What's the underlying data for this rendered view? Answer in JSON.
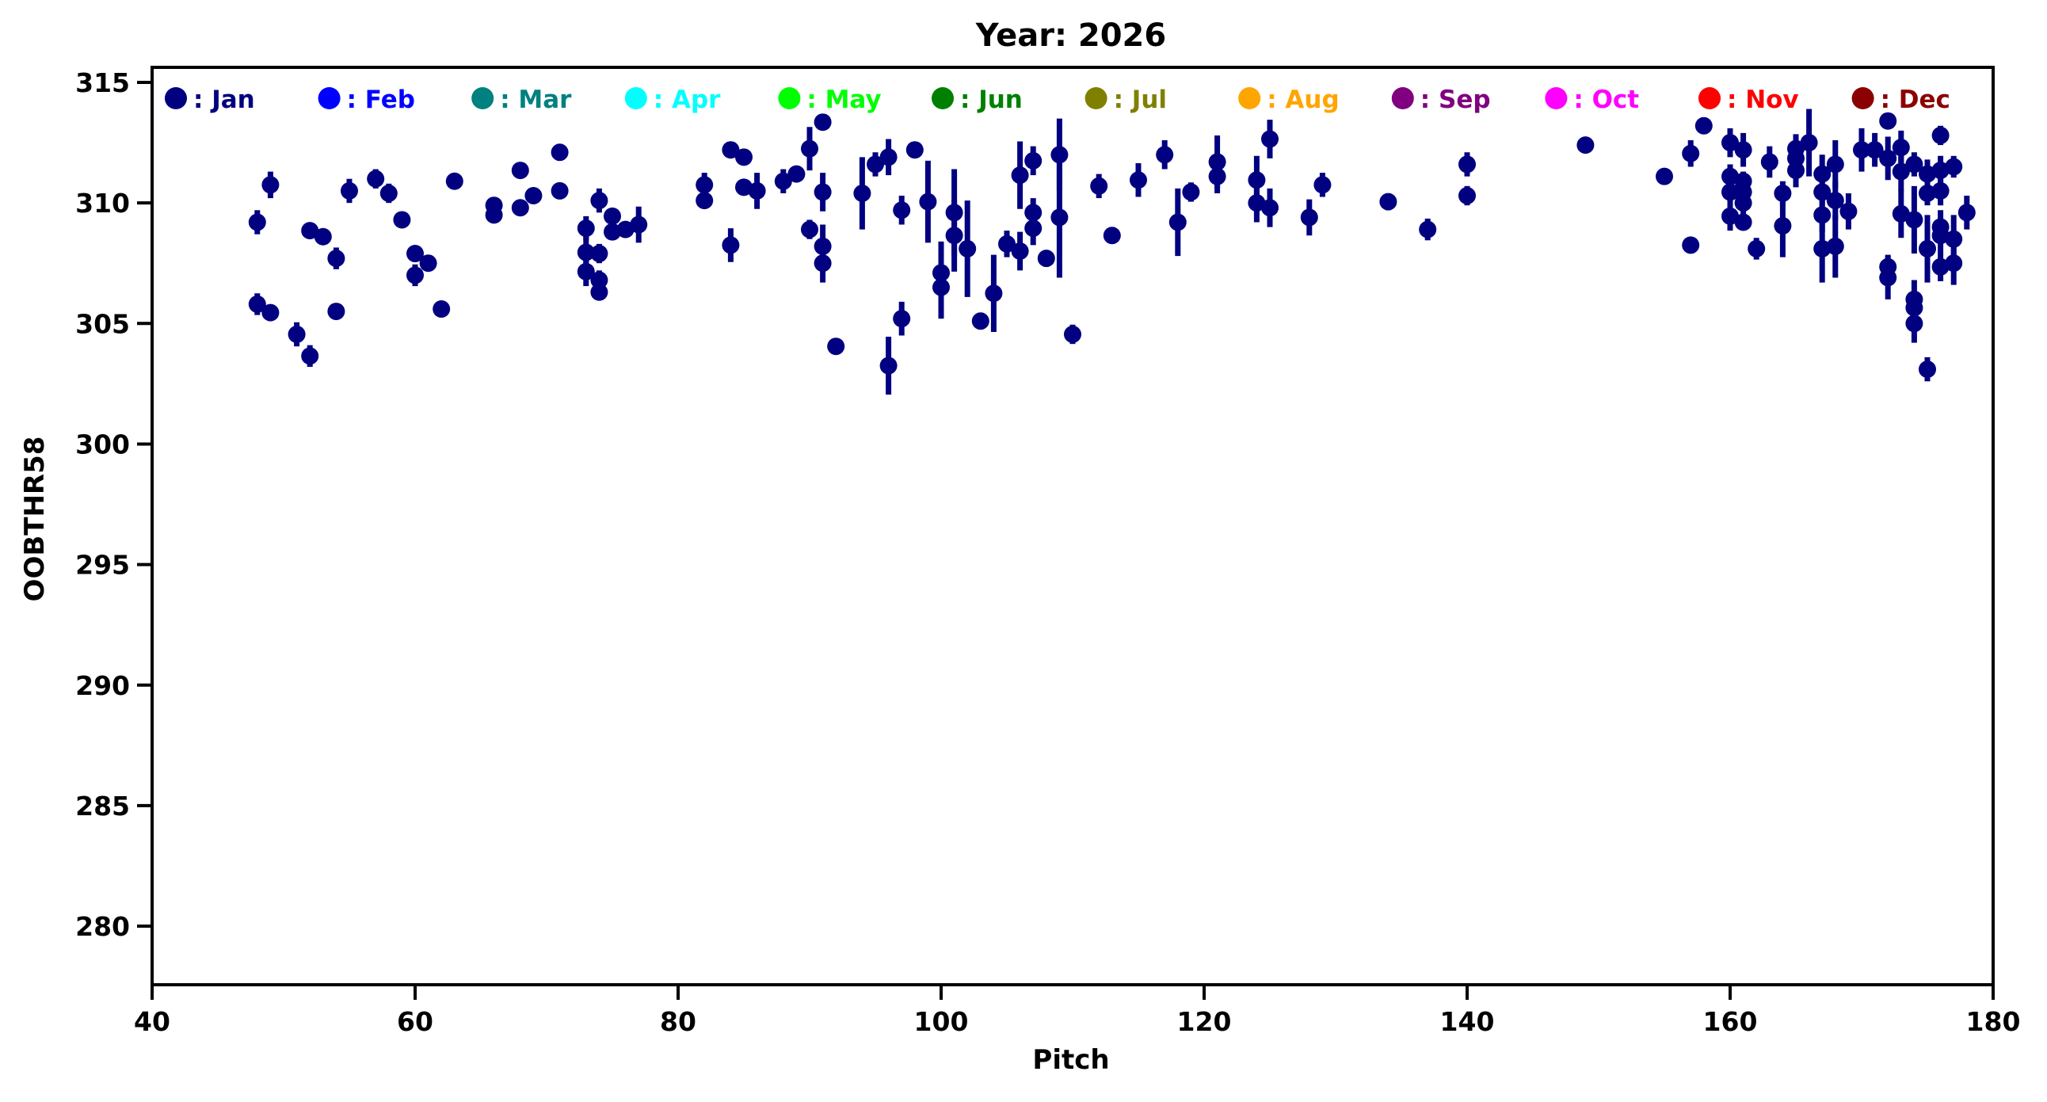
{
  "title": "Year: 2026",
  "axes": {
    "xlabel": "Pitch",
    "ylabel": "OOBTHR58"
  },
  "legend": {
    "months": [
      {
        "label": "Jan",
        "color": "#000080"
      },
      {
        "label": "Feb",
        "color": "#0000ff"
      },
      {
        "label": "Mar",
        "color": "#008080"
      },
      {
        "label": "Apr",
        "color": "#00ffff"
      },
      {
        "label": "May",
        "color": "#00ff00"
      },
      {
        "label": "Jun",
        "color": "#008000"
      },
      {
        "label": "Jul",
        "color": "#808000"
      },
      {
        "label": "Aug",
        "color": "#ffa500"
      },
      {
        "label": "Sep",
        "color": "#800080"
      },
      {
        "label": "Oct",
        "color": "#ff00ff"
      },
      {
        "label": "Nov",
        "color": "#ff0000"
      },
      {
        "label": "Dec",
        "color": "#8b0000"
      }
    ]
  },
  "chart_data": {
    "type": "scatter",
    "title": "Year: 2026",
    "xlabel": "Pitch",
    "ylabel": "OOBTHR58",
    "xlim": [
      40,
      180
    ],
    "ylim": [
      277.6,
      315.5
    ],
    "xticks": [
      40,
      60,
      80,
      100,
      120,
      140,
      160,
      180
    ],
    "yticks": [
      280,
      285,
      290,
      295,
      300,
      305,
      310,
      315
    ],
    "grid": false,
    "legend_position": "top-inside-row",
    "marker_color": "#000080",
    "series": [
      {
        "name": "Jan",
        "color": "#000080",
        "point_format": "[pitch, oobthr58, error]",
        "points": [
          [
            48,
            309.2,
            0.5
          ],
          [
            48,
            305.8,
            0.45
          ],
          [
            49,
            310.75,
            0.55
          ],
          [
            49,
            305.45,
            0.2
          ],
          [
            51,
            304.55,
            0.5
          ],
          [
            52,
            308.85,
            0.2
          ],
          [
            52,
            303.65,
            0.45
          ],
          [
            53,
            308.6,
            0.2
          ],
          [
            54,
            307.7,
            0.45
          ],
          [
            54,
            305.5,
            0.3
          ],
          [
            55,
            310.5,
            0.5
          ],
          [
            57,
            311.0,
            0.4
          ],
          [
            58,
            310.4,
            0.4
          ],
          [
            59,
            309.3,
            0.25
          ],
          [
            60,
            307.9,
            0.2
          ],
          [
            60,
            307.0,
            0.45
          ],
          [
            61,
            307.5,
            0.3
          ],
          [
            62,
            305.6,
            0.3
          ],
          [
            63,
            310.9,
            0.3
          ],
          [
            66,
            309.9,
            0.2
          ],
          [
            66,
            309.5,
            0.2
          ],
          [
            68,
            311.35,
            0.3
          ],
          [
            68,
            309.8,
            0.2
          ],
          [
            69,
            310.3,
            0.2
          ],
          [
            71,
            312.1,
            0.35
          ],
          [
            71,
            310.5,
            0.3
          ],
          [
            73,
            308.95,
            0.5
          ],
          [
            73,
            307.95,
            0.8
          ],
          [
            73,
            307.15,
            0.6
          ],
          [
            74,
            310.1,
            0.5
          ],
          [
            74,
            307.9,
            0.4
          ],
          [
            74,
            306.8,
            0.4
          ],
          [
            74,
            306.3,
            0.3
          ],
          [
            75,
            309.45,
            0.2
          ],
          [
            75,
            308.8,
            0.2
          ],
          [
            76,
            308.9,
            0.2
          ],
          [
            77,
            309.1,
            0.75
          ],
          [
            82,
            310.75,
            0.5
          ],
          [
            82,
            310.1,
            0.3
          ],
          [
            84,
            312.2,
            0.2
          ],
          [
            84,
            308.25,
            0.7
          ],
          [
            85,
            311.9,
            0.2
          ],
          [
            85,
            310.65,
            0.3
          ],
          [
            86,
            310.5,
            0.75
          ],
          [
            88,
            310.9,
            0.5
          ],
          [
            89,
            311.2,
            0.3
          ],
          [
            90,
            312.25,
            0.9
          ],
          [
            90,
            308.9,
            0.4
          ],
          [
            91,
            313.35,
            0.25
          ],
          [
            91,
            310.45,
            0.8
          ],
          [
            91,
            308.2,
            0.9
          ],
          [
            91,
            307.5,
            0.8
          ],
          [
            92,
            304.05,
            0.15
          ],
          [
            94,
            310.4,
            1.5
          ],
          [
            95,
            311.6,
            0.5
          ],
          [
            96,
            311.9,
            0.75
          ],
          [
            96,
            303.25,
            1.2
          ],
          [
            97,
            309.7,
            0.6
          ],
          [
            97,
            305.2,
            0.7
          ],
          [
            98,
            312.2,
            0.3
          ],
          [
            99,
            310.05,
            1.7
          ],
          [
            100,
            307.1,
            1.3
          ],
          [
            100,
            306.5,
            1.3
          ],
          [
            101,
            309.6,
            1.8
          ],
          [
            101,
            308.65,
            1.5
          ],
          [
            102,
            308.1,
            2.0
          ],
          [
            103,
            305.1,
            0.35
          ],
          [
            104,
            306.25,
            1.6
          ],
          [
            105,
            308.3,
            0.55
          ],
          [
            106,
            311.15,
            1.4
          ],
          [
            106,
            308.0,
            0.8
          ],
          [
            107,
            311.75,
            0.6
          ],
          [
            107,
            309.6,
            0.6
          ],
          [
            107,
            308.95,
            0.7
          ],
          [
            108,
            307.7,
            0.35
          ],
          [
            109,
            312.0,
            1.5
          ],
          [
            109,
            309.4,
            2.5
          ],
          [
            110,
            304.55,
            0.4
          ],
          [
            112,
            310.7,
            0.5
          ],
          [
            113,
            308.65,
            0.35
          ],
          [
            115,
            310.95,
            0.7
          ],
          [
            117,
            312.0,
            0.6
          ],
          [
            118,
            309.2,
            1.4
          ],
          [
            119,
            310.45,
            0.4
          ],
          [
            121,
            311.7,
            1.1
          ],
          [
            121,
            311.1,
            0.7
          ],
          [
            124,
            310.95,
            1.0
          ],
          [
            124,
            310.0,
            0.8
          ],
          [
            125,
            312.65,
            0.8
          ],
          [
            125,
            309.8,
            0.8
          ],
          [
            128,
            309.4,
            0.75
          ],
          [
            129,
            310.75,
            0.5
          ],
          [
            134,
            310.05,
            0.35
          ],
          [
            137,
            308.9,
            0.45
          ],
          [
            140,
            311.6,
            0.5
          ],
          [
            140,
            310.3,
            0.4
          ],
          [
            149,
            312.4,
            0.3
          ],
          [
            155,
            311.1,
            0.3
          ],
          [
            157,
            312.05,
            0.55
          ],
          [
            157,
            308.25,
            0.2
          ],
          [
            158,
            313.2,
            0.35
          ],
          [
            160,
            312.5,
            0.6
          ],
          [
            160,
            311.1,
            0.5
          ],
          [
            160,
            310.45,
            0.5
          ],
          [
            160,
            309.45,
            0.6
          ],
          [
            161,
            312.2,
            0.7
          ],
          [
            161,
            310.9,
            0.4
          ],
          [
            161,
            310.45,
            0.4
          ],
          [
            161,
            310.0,
            0.5
          ],
          [
            161,
            309.2,
            0.3
          ],
          [
            162,
            308.1,
            0.45
          ],
          [
            163,
            311.7,
            0.65
          ],
          [
            164,
            310.4,
            0.5
          ],
          [
            164,
            309.05,
            1.3
          ],
          [
            165,
            312.25,
            0.6
          ],
          [
            165,
            311.85,
            0.5
          ],
          [
            165,
            311.35,
            0.7
          ],
          [
            166,
            312.5,
            1.4
          ],
          [
            167,
            311.2,
            0.8
          ],
          [
            167,
            310.45,
            0.6
          ],
          [
            167,
            309.5,
            0.7
          ],
          [
            167,
            308.1,
            1.4
          ],
          [
            168,
            311.6,
            1.0
          ],
          [
            168,
            310.1,
            0.8
          ],
          [
            168,
            308.2,
            1.3
          ],
          [
            169,
            309.65,
            0.75
          ],
          [
            170,
            312.2,
            0.9
          ],
          [
            171,
            312.2,
            0.7
          ],
          [
            172,
            313.4,
            0.3
          ],
          [
            172,
            311.85,
            0.9
          ],
          [
            172,
            307.35,
            0.5
          ],
          [
            172,
            306.9,
            0.9
          ],
          [
            173,
            312.3,
            0.7
          ],
          [
            173,
            311.3,
            0.8
          ],
          [
            173,
            309.55,
            1.0
          ],
          [
            174,
            311.6,
            0.5
          ],
          [
            174,
            309.3,
            1.4
          ],
          [
            174,
            306.0,
            0.8
          ],
          [
            174,
            305.65,
            0.6
          ],
          [
            174,
            305.0,
            0.8
          ],
          [
            175,
            311.2,
            0.6
          ],
          [
            175,
            310.4,
            0.5
          ],
          [
            175,
            308.1,
            1.4
          ],
          [
            175,
            303.1,
            0.5
          ],
          [
            176,
            312.8,
            0.4
          ],
          [
            176,
            311.35,
            0.6
          ],
          [
            176,
            310.5,
            0.6
          ],
          [
            176,
            309.0,
            0.7
          ],
          [
            176,
            308.65,
            0.7
          ],
          [
            176,
            307.35,
            0.6
          ],
          [
            177,
            311.5,
            0.45
          ],
          [
            177,
            308.5,
            1.0
          ],
          [
            177,
            307.5,
            0.9
          ],
          [
            178,
            309.6,
            0.7
          ]
        ]
      }
    ]
  }
}
